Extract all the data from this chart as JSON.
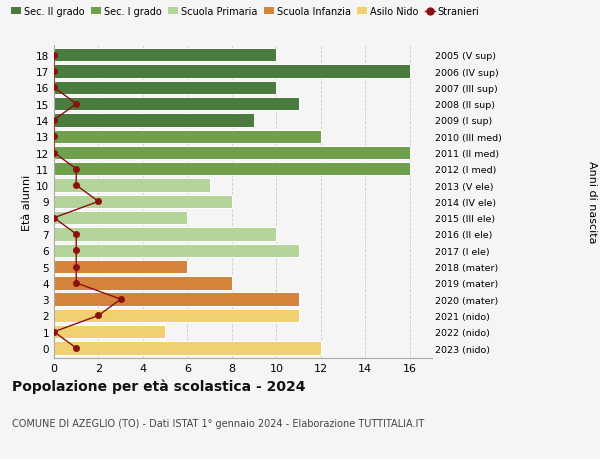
{
  "ages": [
    18,
    17,
    16,
    15,
    14,
    13,
    12,
    11,
    10,
    9,
    8,
    7,
    6,
    5,
    4,
    3,
    2,
    1,
    0
  ],
  "years": [
    "2005 (V sup)",
    "2006 (IV sup)",
    "2007 (III sup)",
    "2008 (II sup)",
    "2009 (I sup)",
    "2010 (III med)",
    "2011 (II med)",
    "2012 (I med)",
    "2013 (V ele)",
    "2014 (IV ele)",
    "2015 (III ele)",
    "2016 (II ele)",
    "2017 (I ele)",
    "2018 (mater)",
    "2019 (mater)",
    "2020 (mater)",
    "2021 (nido)",
    "2022 (nido)",
    "2023 (nido)"
  ],
  "bar_values": [
    10,
    16,
    10,
    11,
    9,
    12,
    16,
    16,
    7,
    8,
    6,
    10,
    11,
    6,
    8,
    11,
    11,
    5,
    12
  ],
  "bar_colors": [
    "#4a7c3f",
    "#4a7c3f",
    "#4a7c3f",
    "#4a7c3f",
    "#4a7c3f",
    "#6ea04e",
    "#6ea04e",
    "#6ea04e",
    "#b5d49a",
    "#b5d49a",
    "#b5d49a",
    "#b5d49a",
    "#b5d49a",
    "#d4833a",
    "#d4833a",
    "#d4833a",
    "#f0d070",
    "#f0d070",
    "#f0d070"
  ],
  "stranieri": [
    0,
    0,
    0,
    1,
    0,
    0,
    0,
    1,
    1,
    2,
    0,
    1,
    1,
    1,
    1,
    3,
    2,
    0,
    1
  ],
  "legend_labels": [
    "Sec. II grado",
    "Sec. I grado",
    "Scuola Primaria",
    "Scuola Infanzia",
    "Asilo Nido",
    "Stranieri"
  ],
  "legend_colors": [
    "#4a7c3f",
    "#6ea04e",
    "#b5d49a",
    "#d4833a",
    "#f0d070",
    "#8b1010"
  ],
  "ylabel_left": "Età alunni",
  "ylabel_right": "Anni di nascita",
  "title": "Popolazione per età scolastica - 2024",
  "subtitle": "COMUNE DI AZEGLIO (TO) - Dati ISTAT 1° gennaio 2024 - Elaborazione TUTTITALIA.IT",
  "xlim": [
    0,
    17
  ],
  "xticks": [
    0,
    2,
    4,
    6,
    8,
    10,
    12,
    14,
    16
  ],
  "bg_color": "#f5f5f5"
}
